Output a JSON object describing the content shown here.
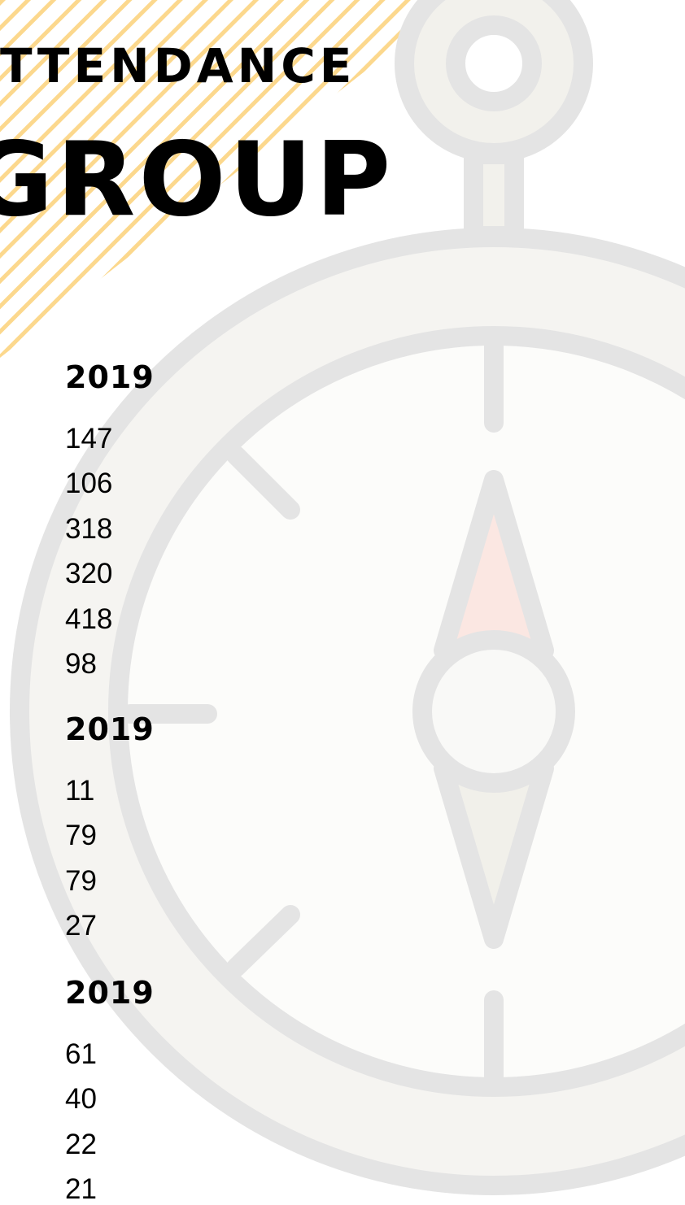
{
  "header": {
    "kicker": "TTENDANCE",
    "title": "GROUP"
  },
  "sections": [
    {
      "heading": "2019",
      "values": [
        147,
        106,
        318,
        320,
        418,
        98
      ]
    },
    {
      "heading": "2019",
      "values": [
        11,
        79,
        79,
        27
      ]
    },
    {
      "heading": "2019",
      "values": [
        61,
        40,
        22,
        21
      ]
    }
  ]
}
